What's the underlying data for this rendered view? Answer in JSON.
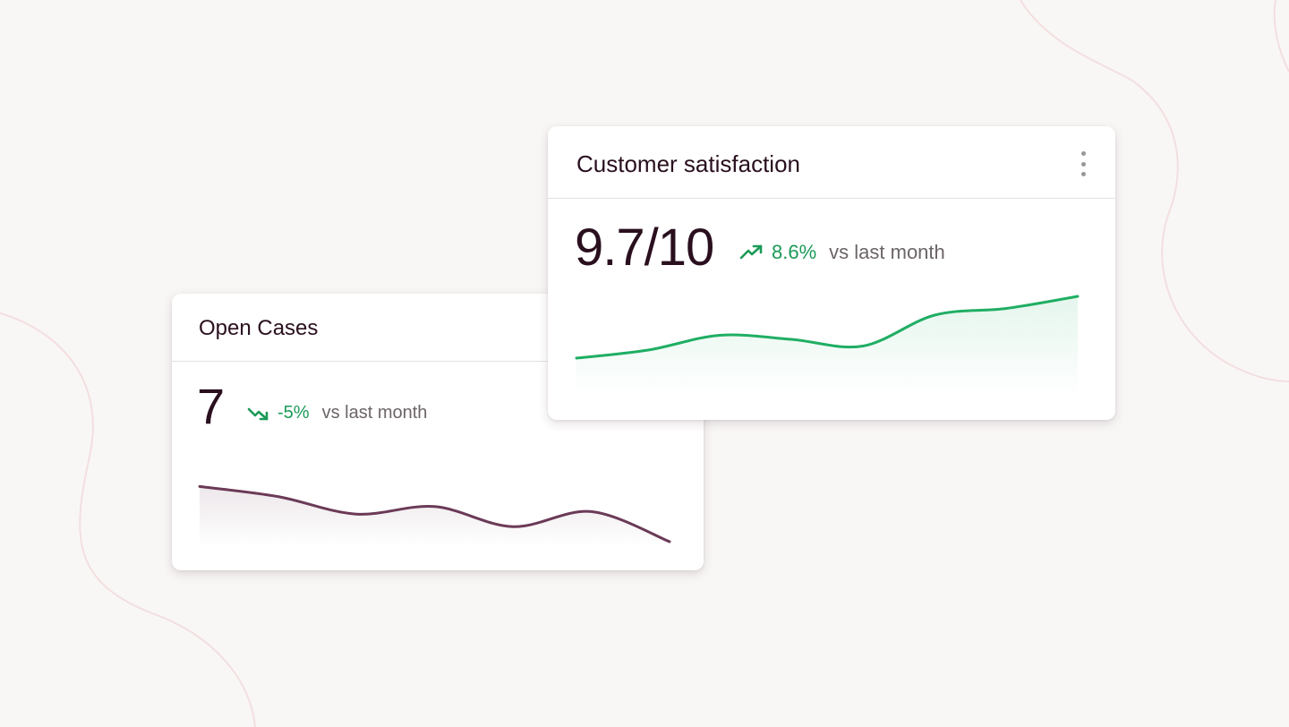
{
  "colors": {
    "background": "#f9f7f6",
    "positive": "#1a9a57",
    "csat_line": "#1fae63",
    "open_cases_line": "#6b3a57",
    "title_text": "#2a0f1f",
    "muted_text": "#6c6468"
  },
  "open_cases": {
    "title": "Open Cases",
    "value": "7",
    "delta": "-5%",
    "delta_direction": "down",
    "comparison": "vs last month",
    "trend_icon": "trending-down-icon"
  },
  "csat": {
    "title": "Customer satisfaction",
    "value": "9.7/10",
    "delta": "8.6%",
    "delta_direction": "up",
    "comparison": "vs last month",
    "trend_icon": "trending-up-icon",
    "menu_icon": "more-vertical-icon"
  },
  "chart_data": [
    {
      "type": "area",
      "series": [
        {
          "values": [
            32,
            28,
            21,
            24,
            16,
            22,
            10
          ]
        }
      ],
      "ylim": [
        0,
        40
      ],
      "grid": false,
      "axes": false
    },
    {
      "type": "area",
      "series": [
        {
          "values": [
            5.4,
            6.0,
            7.1,
            6.8,
            6.3,
            8.6,
            9.1,
            10.0
          ]
        }
      ],
      "ylim": [
        0,
        11
      ],
      "grid": false,
      "axes": false
    }
  ]
}
